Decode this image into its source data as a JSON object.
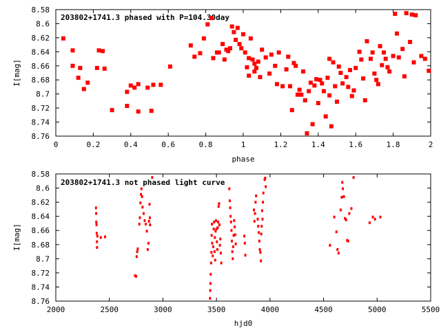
{
  "chart_data": [
    {
      "type": "scatter",
      "title": "203802+1741.3 phased with P=104.30day",
      "xlabel": "phase",
      "ylabel": "I[mag]",
      "xlim": [
        0,
        2
      ],
      "ylim": [
        8.58,
        8.76
      ],
      "y_inverted": true,
      "grid": false,
      "marker_color": "#ff0000",
      "xticks": [
        "0",
        "0.2",
        "0.4",
        "0.6",
        "0.8",
        "1",
        "1.2",
        "1.4",
        "1.6",
        "1.8",
        "2"
      ],
      "yticks": [
        "8.58",
        "8.6",
        "8.62",
        "8.64",
        "8.66",
        "8.68",
        "8.7",
        "8.72",
        "8.74",
        "8.76"
      ],
      "series": [
        {
          "points": [
            [
              0.04,
              8.621
            ],
            [
              0.09,
              8.638
            ],
            [
              0.09,
              8.66
            ],
            [
              0.12,
              8.677
            ],
            [
              0.13,
              8.663
            ],
            [
              0.15,
              8.693
            ],
            [
              0.17,
              8.684
            ],
            [
              0.22,
              8.663
            ],
            [
              0.23,
              8.638
            ],
            [
              0.25,
              8.639
            ],
            [
              0.26,
              8.664
            ],
            [
              0.3,
              8.723
            ],
            [
              0.38,
              8.697
            ],
            [
              0.38,
              8.717
            ],
            [
              0.4,
              8.688
            ],
            [
              0.42,
              8.691
            ],
            [
              0.44,
              8.686
            ],
            [
              0.44,
              8.725
            ],
            [
              0.49,
              8.691
            ],
            [
              0.51,
              8.724
            ],
            [
              0.52,
              8.687
            ],
            [
              0.56,
              8.687
            ],
            [
              0.61,
              8.661
            ],
            [
              0.72,
              8.631
            ],
            [
              0.74,
              8.647
            ],
            [
              0.77,
              8.642
            ],
            [
              0.79,
              8.621
            ],
            [
              0.81,
              8.601
            ],
            [
              0.83,
              8.592
            ],
            [
              0.84,
              8.649
            ],
            [
              0.86,
              8.641
            ],
            [
              0.87,
              8.641
            ],
            [
              0.89,
              8.629
            ],
            [
              0.9,
              8.651
            ],
            [
              0.91,
              8.637
            ],
            [
              0.92,
              8.639
            ],
            [
              0.93,
              8.635
            ],
            [
              0.94,
              8.604
            ],
            [
              0.95,
              8.612
            ],
            [
              0.96,
              8.623
            ],
            [
              0.97,
              8.606
            ],
            [
              0.98,
              8.629
            ],
            [
              0.99,
              8.635
            ],
            [
              1.0,
              8.615
            ],
            [
              1.01,
              8.641
            ],
            [
              1.02,
              8.662
            ],
            [
              1.03,
              8.649
            ],
            [
              1.03,
              8.674
            ],
            [
              1.04,
              8.621
            ],
            [
              1.05,
              8.651
            ],
            [
              1.06,
              8.657
            ],
            [
              1.06,
              8.668
            ],
            [
              1.07,
              8.663
            ],
            [
              1.08,
              8.654
            ],
            [
              1.09,
              8.676
            ],
            [
              1.1,
              8.637
            ],
            [
              1.12,
              8.648
            ],
            [
              1.14,
              8.671
            ],
            [
              1.15,
              8.644
            ],
            [
              1.17,
              8.66
            ],
            [
              1.18,
              8.686
            ],
            [
              1.19,
              8.641
            ],
            [
              1.21,
              8.689
            ],
            [
              1.23,
              8.665
            ],
            [
              1.24,
              8.647
            ],
            [
              1.25,
              8.689
            ],
            [
              1.26,
              8.723
            ],
            [
              1.27,
              8.656
            ],
            [
              1.28,
              8.66
            ],
            [
              1.29,
              8.701
            ],
            [
              1.3,
              8.694
            ],
            [
              1.31,
              8.701
            ],
            [
              1.32,
              8.668
            ],
            [
              1.33,
              8.709
            ],
            [
              1.34,
              8.756
            ],
            [
              1.35,
              8.696
            ],
            [
              1.36,
              8.684
            ],
            [
              1.37,
              8.743
            ],
            [
              1.38,
              8.688
            ],
            [
              1.39,
              8.679
            ],
            [
              1.4,
              8.713
            ],
            [
              1.41,
              8.68
            ],
            [
              1.42,
              8.685
            ],
            [
              1.43,
              8.696
            ],
            [
              1.44,
              8.732
            ],
            [
              1.45,
              8.677
            ],
            [
              1.46,
              8.65
            ],
            [
              1.46,
              8.702
            ],
            [
              1.47,
              8.746
            ],
            [
              1.48,
              8.655
            ],
            [
              1.49,
              8.689
            ],
            [
              1.5,
              8.711
            ],
            [
              1.51,
              8.661
            ],
            [
              1.52,
              8.67
            ],
            [
              1.53,
              8.685
            ],
            [
              1.55,
              8.676
            ],
            [
              1.56,
              8.69
            ],
            [
              1.57,
              8.666
            ],
            [
              1.58,
              8.703
            ],
            [
              1.59,
              8.695
            ],
            [
              1.6,
              8.663
            ],
            [
              1.62,
              8.64
            ],
            [
              1.63,
              8.651
            ],
            [
              1.64,
              8.678
            ],
            [
              1.65,
              8.709
            ],
            [
              1.66,
              8.625
            ],
            [
              1.68,
              8.65
            ],
            [
              1.69,
              8.641
            ],
            [
              1.7,
              8.671
            ],
            [
              1.71,
              8.68
            ],
            [
              1.72,
              8.686
            ],
            [
              1.73,
              8.632
            ],
            [
              1.74,
              8.659
            ],
            [
              1.75,
              8.641
            ],
            [
              1.76,
              8.65
            ],
            [
              1.77,
              8.662
            ],
            [
              1.78,
              8.668
            ],
            [
              1.8,
              8.646
            ],
            [
              1.81,
              8.586
            ],
            [
              1.82,
              8.614
            ],
            [
              1.83,
              8.648
            ],
            [
              1.85,
              8.636
            ],
            [
              1.86,
              8.675
            ],
            [
              1.87,
              8.585
            ],
            [
              1.89,
              8.626
            ],
            [
              1.9,
              8.587
            ],
            [
              1.91,
              8.655
            ],
            [
              1.92,
              8.588
            ],
            [
              1.95,
              8.646
            ],
            [
              1.97,
              8.65
            ],
            [
              1.99,
              8.667
            ]
          ]
        }
      ]
    },
    {
      "type": "scatter",
      "title": "203802+1741.3 not phased light curve",
      "xlabel": "hjd0",
      "ylabel": "I[mag]",
      "xlim": [
        2000,
        5500
      ],
      "ylim": [
        8.58,
        8.76
      ],
      "y_inverted": true,
      "grid": false,
      "marker_color": "#ff0000",
      "xticks": [
        "2000",
        "2500",
        "3000",
        "3500",
        "4000",
        "4500",
        "5000",
        "5500"
      ],
      "yticks": [
        "8.58",
        "8.6",
        "8.62",
        "8.64",
        "8.66",
        "8.68",
        "8.7",
        "8.72",
        "8.74",
        "8.76"
      ],
      "series": [
        {
          "points": [
            [
              2375,
              8.628
            ],
            [
              2377,
              8.636
            ],
            [
              2378,
              8.648
            ],
            [
              2380,
              8.652
            ],
            [
              2382,
              8.664
            ],
            [
              2384,
              8.676
            ],
            [
              2385,
              8.684
            ],
            [
              2388,
              8.668
            ],
            [
              2420,
              8.67
            ],
            [
              2460,
              8.669
            ],
            [
              2740,
              8.724
            ],
            [
              2750,
              8.725
            ],
            [
              2755,
              8.697
            ],
            [
              2760,
              8.69
            ],
            [
              2765,
              8.686
            ],
            [
              2780,
              8.651
            ],
            [
              2785,
              8.642
            ],
            [
              2790,
              8.621
            ],
            [
              2795,
              8.609
            ],
            [
              2800,
              8.601
            ],
            [
              2805,
              8.612
            ],
            [
              2810,
              8.627
            ],
            [
              2820,
              8.636
            ],
            [
              2830,
              8.646
            ],
            [
              2840,
              8.651
            ],
            [
              2850,
              8.661
            ],
            [
              2858,
              8.687
            ],
            [
              2865,
              8.678
            ],
            [
              2870,
              8.647
            ],
            [
              2875,
              8.623
            ],
            [
              2878,
              8.642
            ],
            [
              2880,
              8.652
            ],
            [
              2900,
              8.585
            ],
            [
              3440,
              8.756
            ],
            [
              3442,
              8.745
            ],
            [
              3444,
              8.735
            ],
            [
              3446,
              8.722
            ],
            [
              3450,
              8.706
            ],
            [
              3453,
              8.691
            ],
            [
              3455,
              8.667
            ],
            [
              3458,
              8.651
            ],
            [
              3460,
              8.678
            ],
            [
              3465,
              8.696
            ],
            [
              3470,
              8.683
            ],
            [
              3474,
              8.658
            ],
            [
              3478,
              8.648
            ],
            [
              3482,
              8.69
            ],
            [
              3485,
              8.67
            ],
            [
              3488,
              8.702
            ],
            [
              3492,
              8.661
            ],
            [
              3496,
              8.646
            ],
            [
              3500,
              8.658
            ],
            [
              3504,
              8.676
            ],
            [
              3508,
              8.687
            ],
            [
              3512,
              8.656
            ],
            [
              3516,
              8.648
            ],
            [
              3520,
              8.626
            ],
            [
              3524,
              8.622
            ],
            [
              3528,
              8.652
            ],
            [
              3532,
              8.681
            ],
            [
              3536,
              8.672
            ],
            [
              3540,
              8.692
            ],
            [
              3545,
              8.706
            ],
            [
              3620,
              8.601
            ],
            [
              3624,
              8.618
            ],
            [
              3628,
              8.628
            ],
            [
              3632,
              8.64
            ],
            [
              3636,
              8.648
            ],
            [
              3640,
              8.66
            ],
            [
              3644,
              8.675
            ],
            [
              3648,
              8.69
            ],
            [
              3652,
              8.7
            ],
            [
              3656,
              8.683
            ],
            [
              3660,
              8.667
            ],
            [
              3665,
              8.646
            ],
            [
              3670,
              8.655
            ],
            [
              3675,
              8.666
            ],
            [
              3680,
              8.679
            ],
            [
              3760,
              8.668
            ],
            [
              3765,
              8.678
            ],
            [
              3770,
              8.695
            ],
            [
              3850,
              8.631
            ],
            [
              3855,
              8.647
            ],
            [
              3860,
              8.636
            ],
            [
              3865,
              8.62
            ],
            [
              3870,
              8.611
            ],
            [
              3885,
              8.644
            ],
            [
              3890,
              8.654
            ],
            [
              3895,
              8.663
            ],
            [
              3900,
              8.675
            ],
            [
              3905,
              8.687
            ],
            [
              3910,
              8.691
            ],
            [
              3915,
              8.703
            ],
            [
              3918,
              8.665
            ],
            [
              3922,
              8.654
            ],
            [
              3926,
              8.632
            ],
            [
              3930,
              8.644
            ],
            [
              3934,
              8.62
            ],
            [
              3938,
              8.607
            ],
            [
              3950,
              8.588
            ],
            [
              3955,
              8.586
            ],
            [
              3960,
              8.598
            ],
            [
              4560,
              8.681
            ],
            [
              4600,
              8.641
            ],
            [
              4620,
              8.662
            ],
            [
              4630,
              8.687
            ],
            [
              4640,
              8.692
            ],
            [
              4660,
              8.631
            ],
            [
              4670,
              8.613
            ],
            [
              4675,
              8.592
            ],
            [
              4680,
              8.601
            ],
            [
              4690,
              8.612
            ],
            [
              4700,
              8.643
            ],
            [
              4710,
              8.645
            ],
            [
              4720,
              8.674
            ],
            [
              4730,
              8.675
            ],
            [
              4740,
              8.636
            ],
            [
              4760,
              8.629
            ],
            [
              4780,
              8.585
            ],
            [
              4930,
              8.649
            ],
            [
              4960,
              8.641
            ],
            [
              4980,
              8.644
            ],
            [
              5030,
              8.641
            ]
          ]
        }
      ]
    }
  ]
}
